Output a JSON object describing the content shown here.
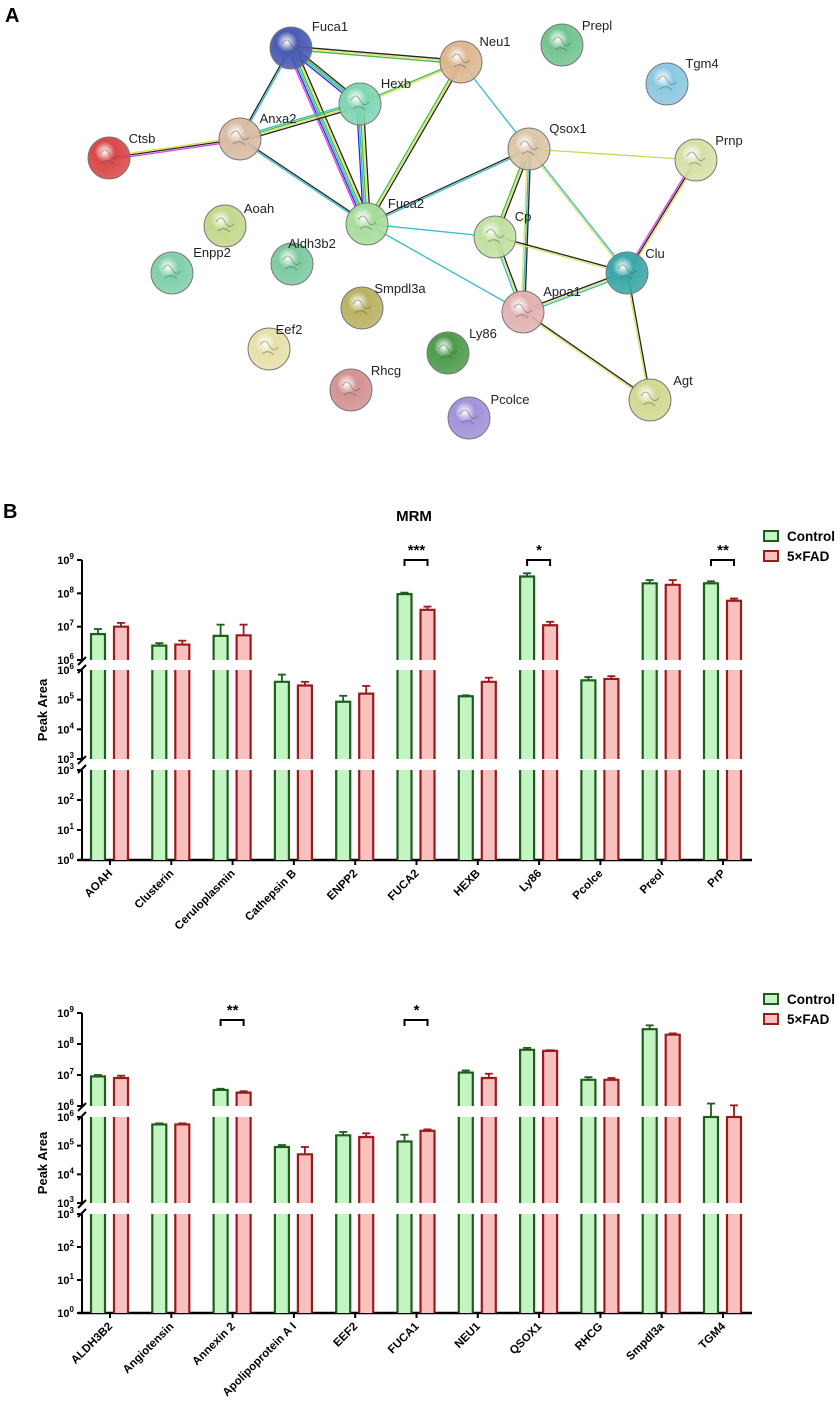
{
  "panel_a": {
    "letter": "A",
    "nodes": [
      {
        "id": "Fuca1",
        "color": "#4a5bb5"
      },
      {
        "id": "Neu1",
        "color": "#dcb890"
      },
      {
        "id": "Prepl",
        "color": "#72c48e"
      },
      {
        "id": "Tgm4",
        "color": "#8cc8e2"
      },
      {
        "id": "Hexb",
        "color": "#80d6b2"
      },
      {
        "id": "Anxa2",
        "color": "#d9bca4"
      },
      {
        "id": "Ctsb",
        "color": "#d84848"
      },
      {
        "id": "Qsox1",
        "color": "#dcc6a8"
      },
      {
        "id": "Prnp",
        "color": "#d8e0a8"
      },
      {
        "id": "Fuca2",
        "color": "#a8dc9c"
      },
      {
        "id": "Aoah",
        "color": "#c2d88c"
      },
      {
        "id": "Enpp2",
        "color": "#80d0aa"
      },
      {
        "id": "Aldh3b2",
        "color": "#7ccaa0"
      },
      {
        "id": "Cp",
        "color": "#c2e0a0"
      },
      {
        "id": "Clu",
        "color": "#3aa8a8"
      },
      {
        "id": "Smpdl3a",
        "color": "#bab262"
      },
      {
        "id": "Apoa1",
        "color": "#e2b2b2"
      },
      {
        "id": "Eef2",
        "color": "#e8e0aa"
      },
      {
        "id": "Ly86",
        "color": "#4c9c4c"
      },
      {
        "id": "Rhcg",
        "color": "#d29292"
      },
      {
        "id": "Pcolce",
        "color": "#a292da"
      },
      {
        "id": "Agt",
        "color": "#d2d892"
      }
    ],
    "edges": [
      [
        "Fuca1",
        "Neu1",
        [
          "#222",
          "#e0e060",
          "#44bb44"
        ]
      ],
      [
        "Fuca1",
        "Hexb",
        [
          "#222",
          "#44bb44",
          "#33bbcc",
          "#2233cc"
        ]
      ],
      [
        "Fuca1",
        "Anxa2",
        [
          "#33bbcc",
          "#222"
        ]
      ],
      [
        "Fuca1",
        "Fuca2",
        [
          "#222",
          "#e0e060",
          "#44bb44",
          "#33bbcc",
          "#2233cc",
          "#dd44dd"
        ]
      ],
      [
        "Hexb",
        "Neu1",
        [
          "#44bb44",
          "#e0e060"
        ]
      ],
      [
        "Hexb",
        "Anxa2",
        [
          "#222",
          "#e0e060",
          "#44bb44",
          "#33bbcc"
        ]
      ],
      [
        "Hexb",
        "Fuca2",
        [
          "#222",
          "#e0e060",
          "#44bb44",
          "#33bbcc",
          "#2233cc"
        ]
      ],
      [
        "Neu1",
        "Fuca2",
        [
          "#222",
          "#e0e060",
          "#44bb44"
        ]
      ],
      [
        "Neu1",
        "Qsox1",
        [
          "#33bbcc"
        ]
      ],
      [
        "Anxa2",
        "Ctsb",
        [
          "#dd44dd",
          "#222",
          "#e0e060"
        ]
      ],
      [
        "Anxa2",
        "Fuca2",
        [
          "#222",
          "#33bbcc"
        ]
      ],
      [
        "Fuca2",
        "Qsox1",
        [
          "#222",
          "#33bbcc"
        ]
      ],
      [
        "Fuca2",
        "Cp",
        [
          "#33bbcc"
        ]
      ],
      [
        "Fuca2",
        "Apoa1",
        [
          "#33bbcc"
        ]
      ],
      [
        "Qsox1",
        "Prnp",
        [
          "#c8d850"
        ]
      ],
      [
        "Qsox1",
        "Cp",
        [
          "#222",
          "#e0e060",
          "#44bb44"
        ]
      ],
      [
        "Qsox1",
        "Apoa1",
        [
          "#222",
          "#33bbcc",
          "#e0e060"
        ]
      ],
      [
        "Qsox1",
        "Clu",
        [
          "#33bbcc",
          "#e0e060"
        ]
      ],
      [
        "Cp",
        "Apoa1",
        [
          "#222",
          "#e0e060",
          "#33bbcc"
        ]
      ],
      [
        "Cp",
        "Clu",
        [
          "#222",
          "#e0e060"
        ]
      ],
      [
        "Apoa1",
        "Clu",
        [
          "#222",
          "#e0e060",
          "#33bbcc"
        ]
      ],
      [
        "Apoa1",
        "Agt",
        [
          "#222",
          "#e0e060"
        ]
      ],
      [
        "Clu",
        "Prnp",
        [
          "#dd44dd",
          "#222",
          "#e0e060"
        ]
      ],
      [
        "Clu",
        "Agt",
        [
          "#222",
          "#e0e060"
        ]
      ]
    ]
  },
  "panel_b": {
    "letter": "B",
    "title": "MRM",
    "legend": [
      {
        "label": "Control",
        "fill": "#c2f5c2",
        "stroke": "#1d5e1d"
      },
      {
        "label": "5×FAD",
        "fill": "#f9c0c0",
        "stroke": "#9b1b1b"
      }
    ]
  },
  "chart_data": [
    {
      "type": "bar",
      "title": "MRM",
      "ylabel": "Peak Area",
      "yscale": "log (broken axis)",
      "ylim": [
        1,
        1000000000
      ],
      "y_segments": [
        [
          1,
          1000
        ],
        [
          1000,
          1000000
        ],
        [
          1000000,
          1000000000
        ]
      ],
      "ytick_base": "10",
      "ytick_exponents": [
        [
          0,
          1,
          2,
          3
        ],
        [
          3,
          4,
          5,
          6
        ],
        [
          6,
          7,
          8,
          9
        ]
      ],
      "legend_position": "top-right",
      "categories": [
        "AOAH",
        "Clusterin",
        "Ceruloplasmin",
        "Cathepsin B",
        "ENPP2",
        "FUCA2",
        "HEXB",
        "Ly86",
        "Pcolce",
        "Preol",
        "PrP"
      ],
      "series": [
        {
          "name": "Control",
          "values": [
            6000000,
            2700000,
            5300000,
            400000,
            85000,
            95000000,
            130000,
            320000000,
            450000,
            200000000,
            200000000
          ],
          "error_top": [
            8500000,
            3200000,
            11500000,
            700000,
            135000,
            105000000,
            140000,
            400000000,
            580000,
            250000000,
            230000000
          ]
        },
        {
          "name": "5×FAD",
          "values": [
            10000000,
            2900000,
            5500000,
            300000,
            160000,
            32000000,
            400000,
            11000000,
            500000,
            180000000,
            60000000
          ],
          "error_top": [
            13000000,
            3800000,
            11500000,
            400000,
            290000,
            40000000,
            550000,
            14000000,
            620000,
            250000000,
            70000000
          ]
        }
      ],
      "significance": [
        {
          "category": "FUCA2",
          "label": "***"
        },
        {
          "category": "Ly86",
          "label": "*"
        },
        {
          "category": "PrP",
          "label": "**"
        }
      ]
    },
    {
      "type": "bar",
      "ylabel": "Peak Area",
      "yscale": "log (broken axis)",
      "ylim": [
        1,
        1000000000
      ],
      "y_segments": [
        [
          1,
          1000
        ],
        [
          1000,
          1000000
        ],
        [
          1000000,
          1000000000
        ]
      ],
      "ytick_base": "10",
      "ytick_exponents": [
        [
          0,
          1,
          2,
          3
        ],
        [
          3,
          4,
          5,
          6
        ],
        [
          6,
          7,
          8,
          9
        ]
      ],
      "legend_position": "top-right",
      "categories": [
        "ALDH3B2",
        "Angiotensin",
        "Annexin 2",
        "Apolipoprotein A I",
        "EEF2",
        "FUCA1",
        "NEU1",
        "QSOX1",
        "RHCG",
        "Smpdl3a",
        "TGM4"
      ],
      "series": [
        {
          "name": "Control",
          "values": [
            9000000,
            550000,
            3300000,
            90000,
            230000,
            140000,
            12000000,
            65000000,
            7000000,
            300000000,
            1000000
          ],
          "error_top": [
            10000000,
            600000,
            3600000,
            105000,
            300000,
            240000,
            14000000,
            75000000,
            8500000,
            400000000,
            1200000
          ]
        },
        {
          "name": "5×FAD",
          "values": [
            8000000,
            550000,
            2700000,
            50000,
            200000,
            330000,
            8000000,
            60000000,
            7000000,
            200000000,
            1000000
          ],
          "error_top": [
            9500000,
            600000,
            3000000,
            90000,
            270000,
            370000,
            11000000,
            63000000,
            8000000,
            220000000,
            1050000
          ]
        }
      ],
      "significance": [
        {
          "category": "Annexin 2",
          "label": "**"
        },
        {
          "category": "FUCA1",
          "label": "*"
        }
      ]
    }
  ]
}
